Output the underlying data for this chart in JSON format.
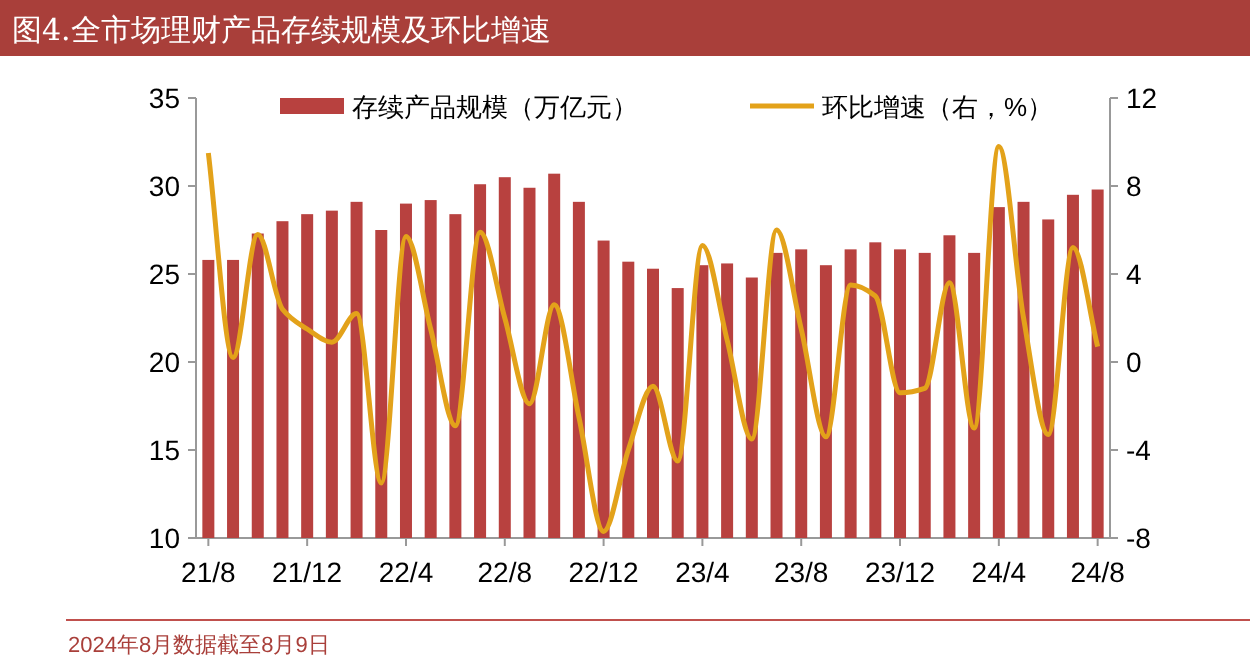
{
  "chart_data": {
    "type": "bar",
    "title": "图4.全市场理财产品存续规模及环比增速",
    "categories": [
      "21/8",
      null,
      null,
      null,
      "21/12",
      null,
      null,
      null,
      "22/4",
      null,
      null,
      null,
      "22/8",
      null,
      null,
      null,
      "22/12",
      null,
      null,
      null,
      "23/4",
      null,
      null,
      null,
      "23/8",
      null,
      null,
      null,
      "23/12",
      null,
      null,
      null,
      "24/4",
      null,
      null,
      null,
      "24/8"
    ],
    "series": [
      {
        "name": "存续产品规模（万亿元）",
        "color": "#b8413f",
        "values": [
          25.8,
          25.8,
          27.3,
          28.0,
          28.4,
          28.6,
          29.1,
          27.5,
          29.0,
          29.2,
          28.4,
          30.1,
          30.5,
          29.9,
          30.7,
          29.1,
          26.9,
          25.7,
          25.3,
          24.2,
          25.5,
          25.6,
          24.8,
          26.2,
          26.4,
          25.5,
          26.4,
          26.8,
          26.4,
          26.2,
          27.2,
          26.2,
          28.8,
          29.1,
          28.1,
          29.5,
          29.8
        ]
      },
      {
        "name": "环比增速（右，%）",
        "color": "#e3a21a",
        "type": "line",
        "axis": "y2",
        "values": [
          9.5,
          0.2,
          5.8,
          2.4,
          1.5,
          0.9,
          2.2,
          -5.5,
          5.7,
          1.5,
          -2.9,
          5.9,
          2.0,
          -1.9,
          2.6,
          -2.5,
          -7.7,
          -4.0,
          -1.1,
          -4.5,
          5.3,
          1.0,
          -3.5,
          6.0,
          1.5,
          -3.4,
          3.5,
          3.0,
          -1.4,
          -1.2,
          3.6,
          -3.0,
          9.8,
          2.0,
          -3.3,
          5.2,
          0.7
        ]
      }
    ],
    "ylim": [
      10,
      35
    ],
    "yticks": [
      10,
      15,
      20,
      25,
      30,
      35
    ],
    "y2lim": [
      -8,
      12
    ],
    "y2ticks": [
      -8,
      -4,
      0,
      4,
      8,
      12
    ],
    "legend": "top",
    "grid": false,
    "annotations": [
      "2024年8月数据截至8月9日"
    ]
  }
}
